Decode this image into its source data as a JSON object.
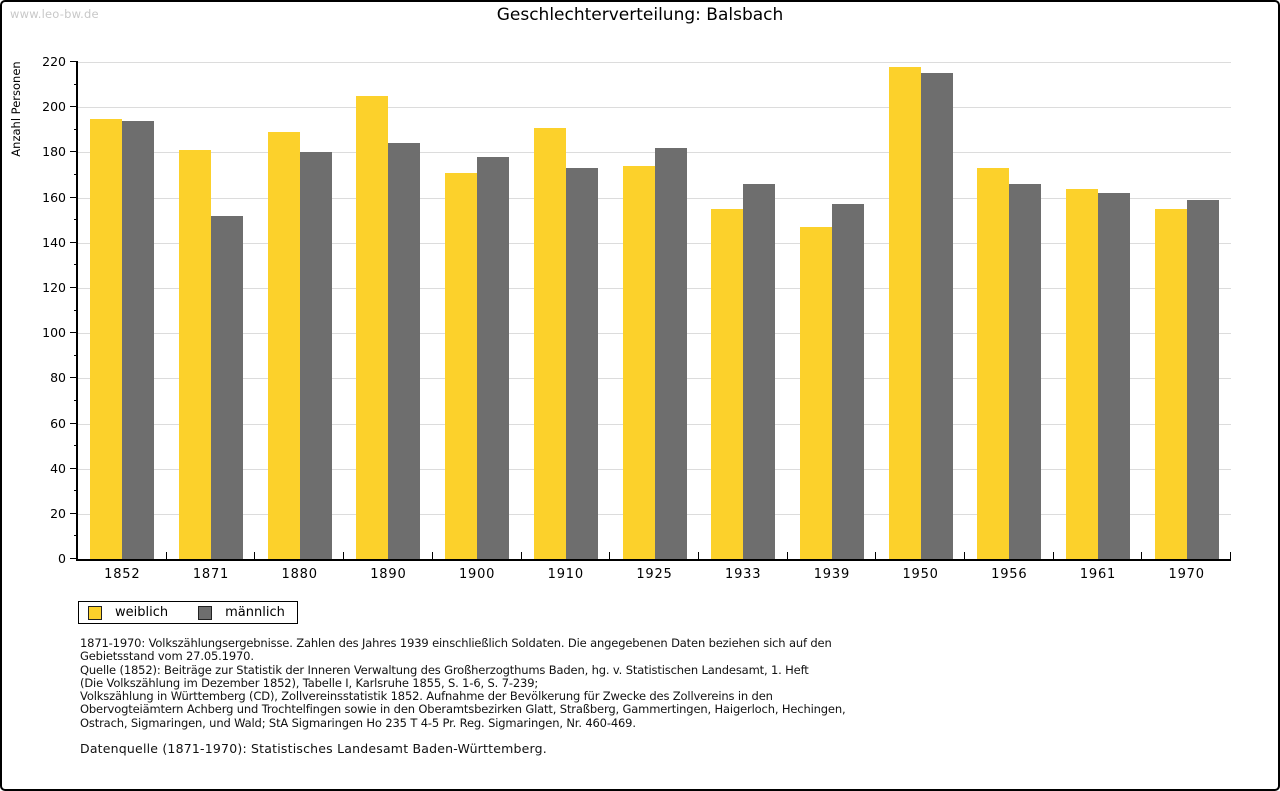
{
  "watermark": "www.leo-bw.de",
  "chart_data": {
    "type": "bar",
    "title": "Geschlechterverteilung: Balsbach",
    "ylabel": "Anzahl Personen",
    "xlabel": "",
    "ylim": [
      0,
      220
    ],
    "ytick_step": 20,
    "yminor_tick_step": 10,
    "ytick_labels": [
      "0",
      "20",
      "40",
      "60",
      "80",
      "100",
      "120",
      "140",
      "160",
      "180",
      "200",
      "220"
    ],
    "grid": "horizontal",
    "legend_position": "bottom-left",
    "categories": [
      "1852",
      "1871",
      "1880",
      "1890",
      "1900",
      "1910",
      "1925",
      "1933",
      "1939",
      "1950",
      "1956",
      "1961",
      "1970"
    ],
    "series": [
      {
        "name": "weiblich",
        "color": "#FCD12B",
        "values": [
          195,
          181,
          189,
          205,
          171,
          191,
          174,
          155,
          147,
          218,
          173,
          164,
          155
        ]
      },
      {
        "name": "männlich",
        "color": "#6E6E6E",
        "values": [
          194,
          152,
          180,
          184,
          178,
          173,
          182,
          166,
          157,
          215,
          166,
          162,
          159
        ]
      }
    ]
  },
  "footnotes": {
    "block1": "1871-1970: Volkszählungsergebnisse. Zahlen des Jahres 1939 einschließlich Soldaten. Die angegebenen Daten beziehen sich auf den\nGebietsstand vom 27.05.1970.\nQuelle (1852): Beiträge zur Statistik der Inneren Verwaltung des Großherzogthums Baden, hg. v. Statistischen Landesamt, 1. Heft\n(Die Volkszählung im Dezember 1852), Tabelle I, Karlsruhe 1855, S. 1-6, S. 7-239;\nVolkszählung in Württemberg (CD), Zollvereinsstatistik 1852. Aufnahme der Bevölkerung für Zwecke des Zollvereins in den\nObervogteiämtern Achberg und Trochtelfingen sowie in den Oberamtsbezirken Glatt, Straßberg, Gammertingen, Haigerloch, Hechingen,\nOstrach, Sigmaringen, und Wald; StA Sigmaringen Ho 235 T 4-5 Pr. Reg. Sigmaringen, Nr. 460-469.",
    "block2": "Datenquelle (1871-1970): Statistisches Landesamt Baden-Württemberg."
  },
  "colors": {
    "gridline": "#DCDCDC",
    "axis": "#000000",
    "watermark_text": "#C8C8C8"
  }
}
